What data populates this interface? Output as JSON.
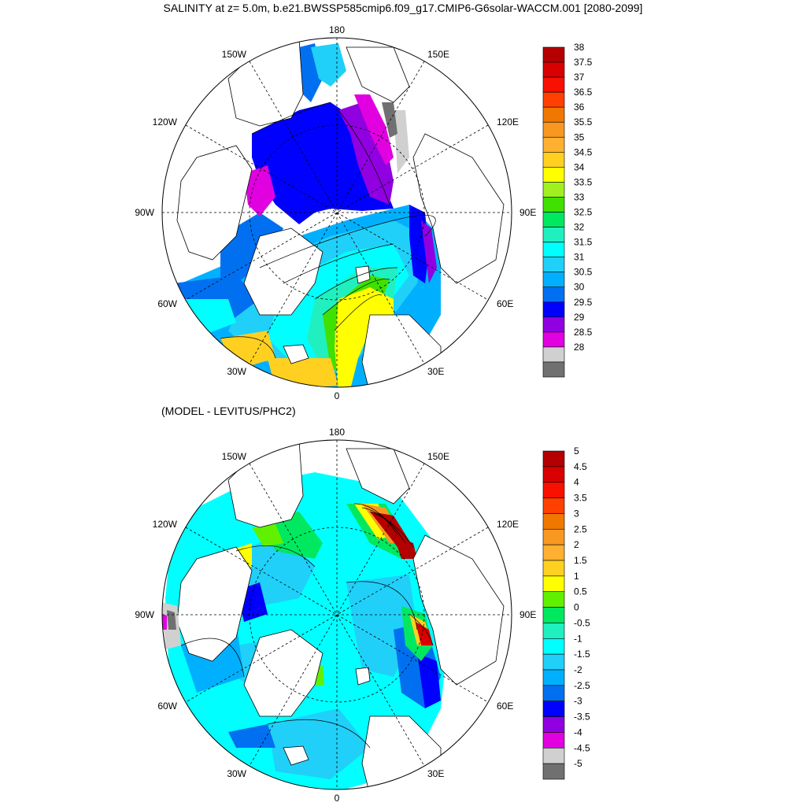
{
  "title": "SALINITY at z=   5.0m, b.e21.BWSSP585cmip6.f09_g17.CMIP6-G6solar-WACCM.001 [2080-2099]",
  "subtitle": "(MODEL - LEVITUS/PHC2)",
  "map_labels": {
    "top": "180",
    "bottom": "0",
    "left": "90W",
    "right": "90E",
    "upper_left": "150W",
    "upper_right": "150E",
    "mid_upper_left": "120W",
    "mid_upper_right": "120E",
    "mid_lower_left": "60W",
    "mid_lower_right": "60E",
    "lower_left": "30W",
    "lower_right": "30E"
  },
  "colorbar_top": {
    "labels": [
      "38",
      "37.5",
      "37",
      "36.5",
      "36",
      "35.5",
      "35",
      "34.5",
      "34",
      "33.5",
      "33",
      "32.5",
      "32",
      "31.5",
      "31",
      "30.5",
      "30",
      "29.5",
      "29",
      "28.5",
      "28"
    ],
    "colors": [
      "#b40000",
      "#d80000",
      "#f81000",
      "#ff4000",
      "#f07800",
      "#f89820",
      "#ffb030",
      "#ffd020",
      "#ffff00",
      "#a0f020",
      "#40e000",
      "#00e860",
      "#20f0c0",
      "#00ffff",
      "#20d0f8",
      "#00b0ff",
      "#0070f0",
      "#0000ff",
      "#9000e0",
      "#e000e0",
      "#d0d0d0",
      "#707070"
    ]
  },
  "colorbar_bottom": {
    "labels": [
      "5",
      "4.5",
      "4",
      "3.5",
      "3",
      "2.5",
      "2",
      "1.5",
      "1",
      "0.5",
      "0",
      "-0.5",
      "-1",
      "-1.5",
      "-2",
      "-2.5",
      "-3",
      "-3.5",
      "-4",
      "-4.5",
      "-5"
    ],
    "colors": [
      "#b40000",
      "#d80000",
      "#f81000",
      "#ff4000",
      "#f07800",
      "#f89820",
      "#ffb030",
      "#ffd020",
      "#ffff00",
      "#60f000",
      "#00e860",
      "#20f0c0",
      "#00ffff",
      "#20d0f8",
      "#00b0ff",
      "#0070f0",
      "#0000ff",
      "#9000e0",
      "#e000e0",
      "#d0d0d0",
      "#707070"
    ]
  }
}
